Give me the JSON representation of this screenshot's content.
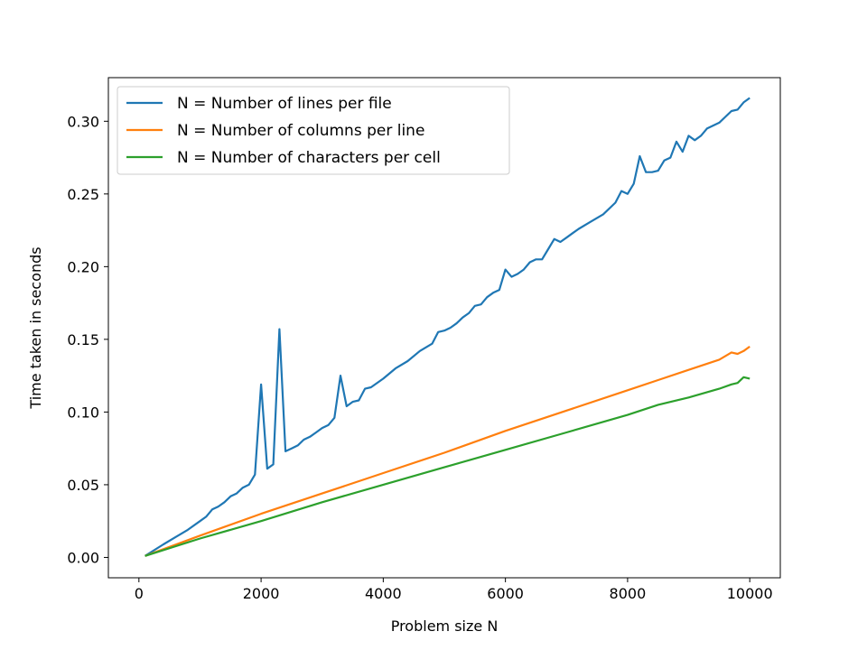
{
  "chart_data": {
    "type": "line",
    "title": "",
    "xlabel": "Problem size N",
    "ylabel": "Time taken in seconds",
    "xlim": [
      -500,
      10500
    ],
    "ylim": [
      -0.014,
      0.33
    ],
    "x_ticks": [
      {
        "value": 0,
        "label": "0"
      },
      {
        "value": 2000,
        "label": "2000"
      },
      {
        "value": 4000,
        "label": "4000"
      },
      {
        "value": 6000,
        "label": "6000"
      },
      {
        "value": 8000,
        "label": "8000"
      },
      {
        "value": 10000,
        "label": "10000"
      }
    ],
    "y_ticks": [
      {
        "value": 0.0,
        "label": "0.00"
      },
      {
        "value": 0.05,
        "label": "0.05"
      },
      {
        "value": 0.1,
        "label": "0.10"
      },
      {
        "value": 0.15,
        "label": "0.15"
      },
      {
        "value": 0.2,
        "label": "0.20"
      },
      {
        "value": 0.25,
        "label": "0.25"
      },
      {
        "value": 0.3,
        "label": "0.30"
      }
    ],
    "grid": false,
    "legend_position": "top-left",
    "series": [
      {
        "name": "N = Number of lines per file",
        "color": "#1f77b4",
        "x": [
          100,
          400,
          600,
          800,
          1000,
          1100,
          1200,
          1300,
          1400,
          1500,
          1600,
          1700,
          1800,
          1900,
          2000,
          2100,
          2200,
          2300,
          2400,
          2500,
          2600,
          2700,
          2800,
          2900,
          3000,
          3100,
          3200,
          3300,
          3400,
          3500,
          3600,
          3700,
          3800,
          4000,
          4200,
          4400,
          4600,
          4800,
          4900,
          5000,
          5100,
          5200,
          5300,
          5400,
          5500,
          5600,
          5700,
          5800,
          5900,
          6000,
          6100,
          6200,
          6300,
          6400,
          6500,
          6600,
          6700,
          6800,
          6900,
          7000,
          7100,
          7200,
          7400,
          7600,
          7800,
          7900,
          8000,
          8100,
          8200,
          8300,
          8400,
          8500,
          8600,
          8700,
          8800,
          8900,
          9000,
          9100,
          9200,
          9300,
          9400,
          9500,
          9600,
          9700,
          9800,
          9900,
          10000
        ],
        "values": [
          0.001,
          0.009,
          0.014,
          0.019,
          0.025,
          0.028,
          0.033,
          0.035,
          0.038,
          0.042,
          0.044,
          0.048,
          0.05,
          0.057,
          0.119,
          0.061,
          0.064,
          0.157,
          0.073,
          0.075,
          0.077,
          0.081,
          0.083,
          0.086,
          0.089,
          0.091,
          0.096,
          0.125,
          0.104,
          0.107,
          0.108,
          0.116,
          0.117,
          0.123,
          0.13,
          0.135,
          0.142,
          0.147,
          0.155,
          0.156,
          0.158,
          0.161,
          0.165,
          0.168,
          0.173,
          0.174,
          0.179,
          0.182,
          0.184,
          0.198,
          0.193,
          0.195,
          0.198,
          0.203,
          0.205,
          0.205,
          0.212,
          0.219,
          0.217,
          0.22,
          0.223,
          0.226,
          0.231,
          0.236,
          0.244,
          0.252,
          0.25,
          0.257,
          0.276,
          0.265,
          0.265,
          0.266,
          0.273,
          0.275,
          0.286,
          0.279,
          0.29,
          0.287,
          0.29,
          0.295,
          0.297,
          0.299,
          0.303,
          0.307,
          0.308,
          0.313,
          0.316
        ]
      },
      {
        "name": "N = Number of columns per line",
        "color": "#ff7f0e",
        "x": [
          100,
          1000,
          2000,
          3000,
          4000,
          5000,
          6000,
          7000,
          8000,
          8500,
          9000,
          9500,
          9700,
          9800,
          9900,
          10000
        ],
        "values": [
          0.001,
          0.015,
          0.03,
          0.044,
          0.058,
          0.072,
          0.087,
          0.101,
          0.115,
          0.122,
          0.129,
          0.136,
          0.141,
          0.14,
          0.142,
          0.145
        ]
      },
      {
        "name": "N = Number of characters per cell",
        "color": "#2ca02c",
        "x": [
          100,
          1000,
          2000,
          3000,
          4000,
          5000,
          6000,
          7000,
          8000,
          8500,
          9000,
          9500,
          9700,
          9800,
          9900,
          10000
        ],
        "values": [
          0.001,
          0.013,
          0.025,
          0.038,
          0.05,
          0.062,
          0.074,
          0.086,
          0.098,
          0.105,
          0.11,
          0.116,
          0.119,
          0.12,
          0.124,
          0.123
        ]
      }
    ]
  }
}
